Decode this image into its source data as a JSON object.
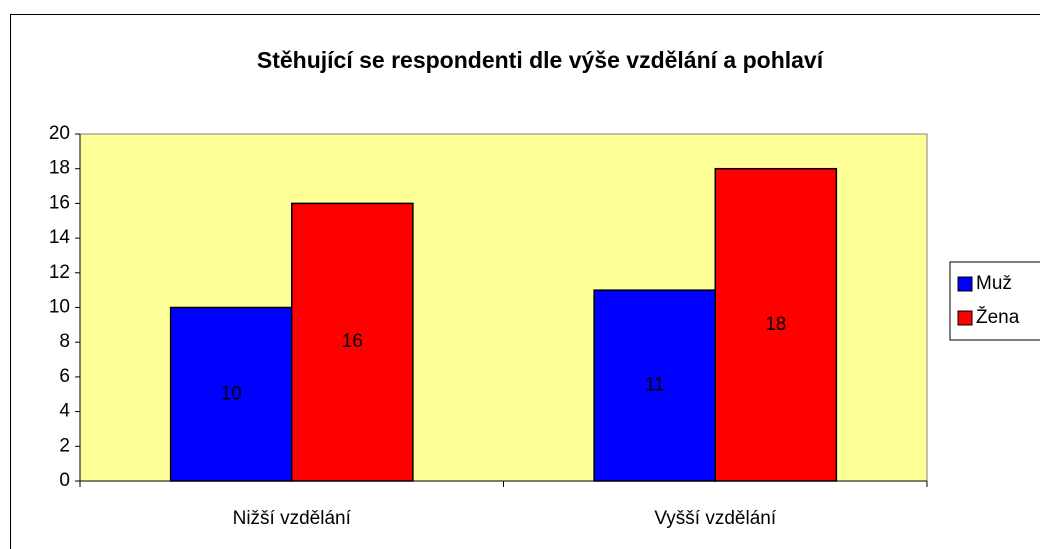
{
  "chart_data": {
    "type": "bar",
    "title": "Stěhující se respondenti dle výše vzdělání a pohlaví",
    "categories": [
      "Nižší vzdělání",
      "Vyšší vzdělání"
    ],
    "series": [
      {
        "name": "Muž",
        "color": "#0000ff",
        "values": [
          10,
          11
        ]
      },
      {
        "name": "Žena",
        "color": "#ff0000",
        "values": [
          16,
          18
        ]
      }
    ],
    "ylim": [
      0,
      20
    ],
    "yticks": [
      0,
      2,
      4,
      6,
      8,
      10,
      12,
      14,
      16,
      18,
      20
    ],
    "grid": false,
    "legend": "right",
    "plot_background": "#ffff99"
  }
}
